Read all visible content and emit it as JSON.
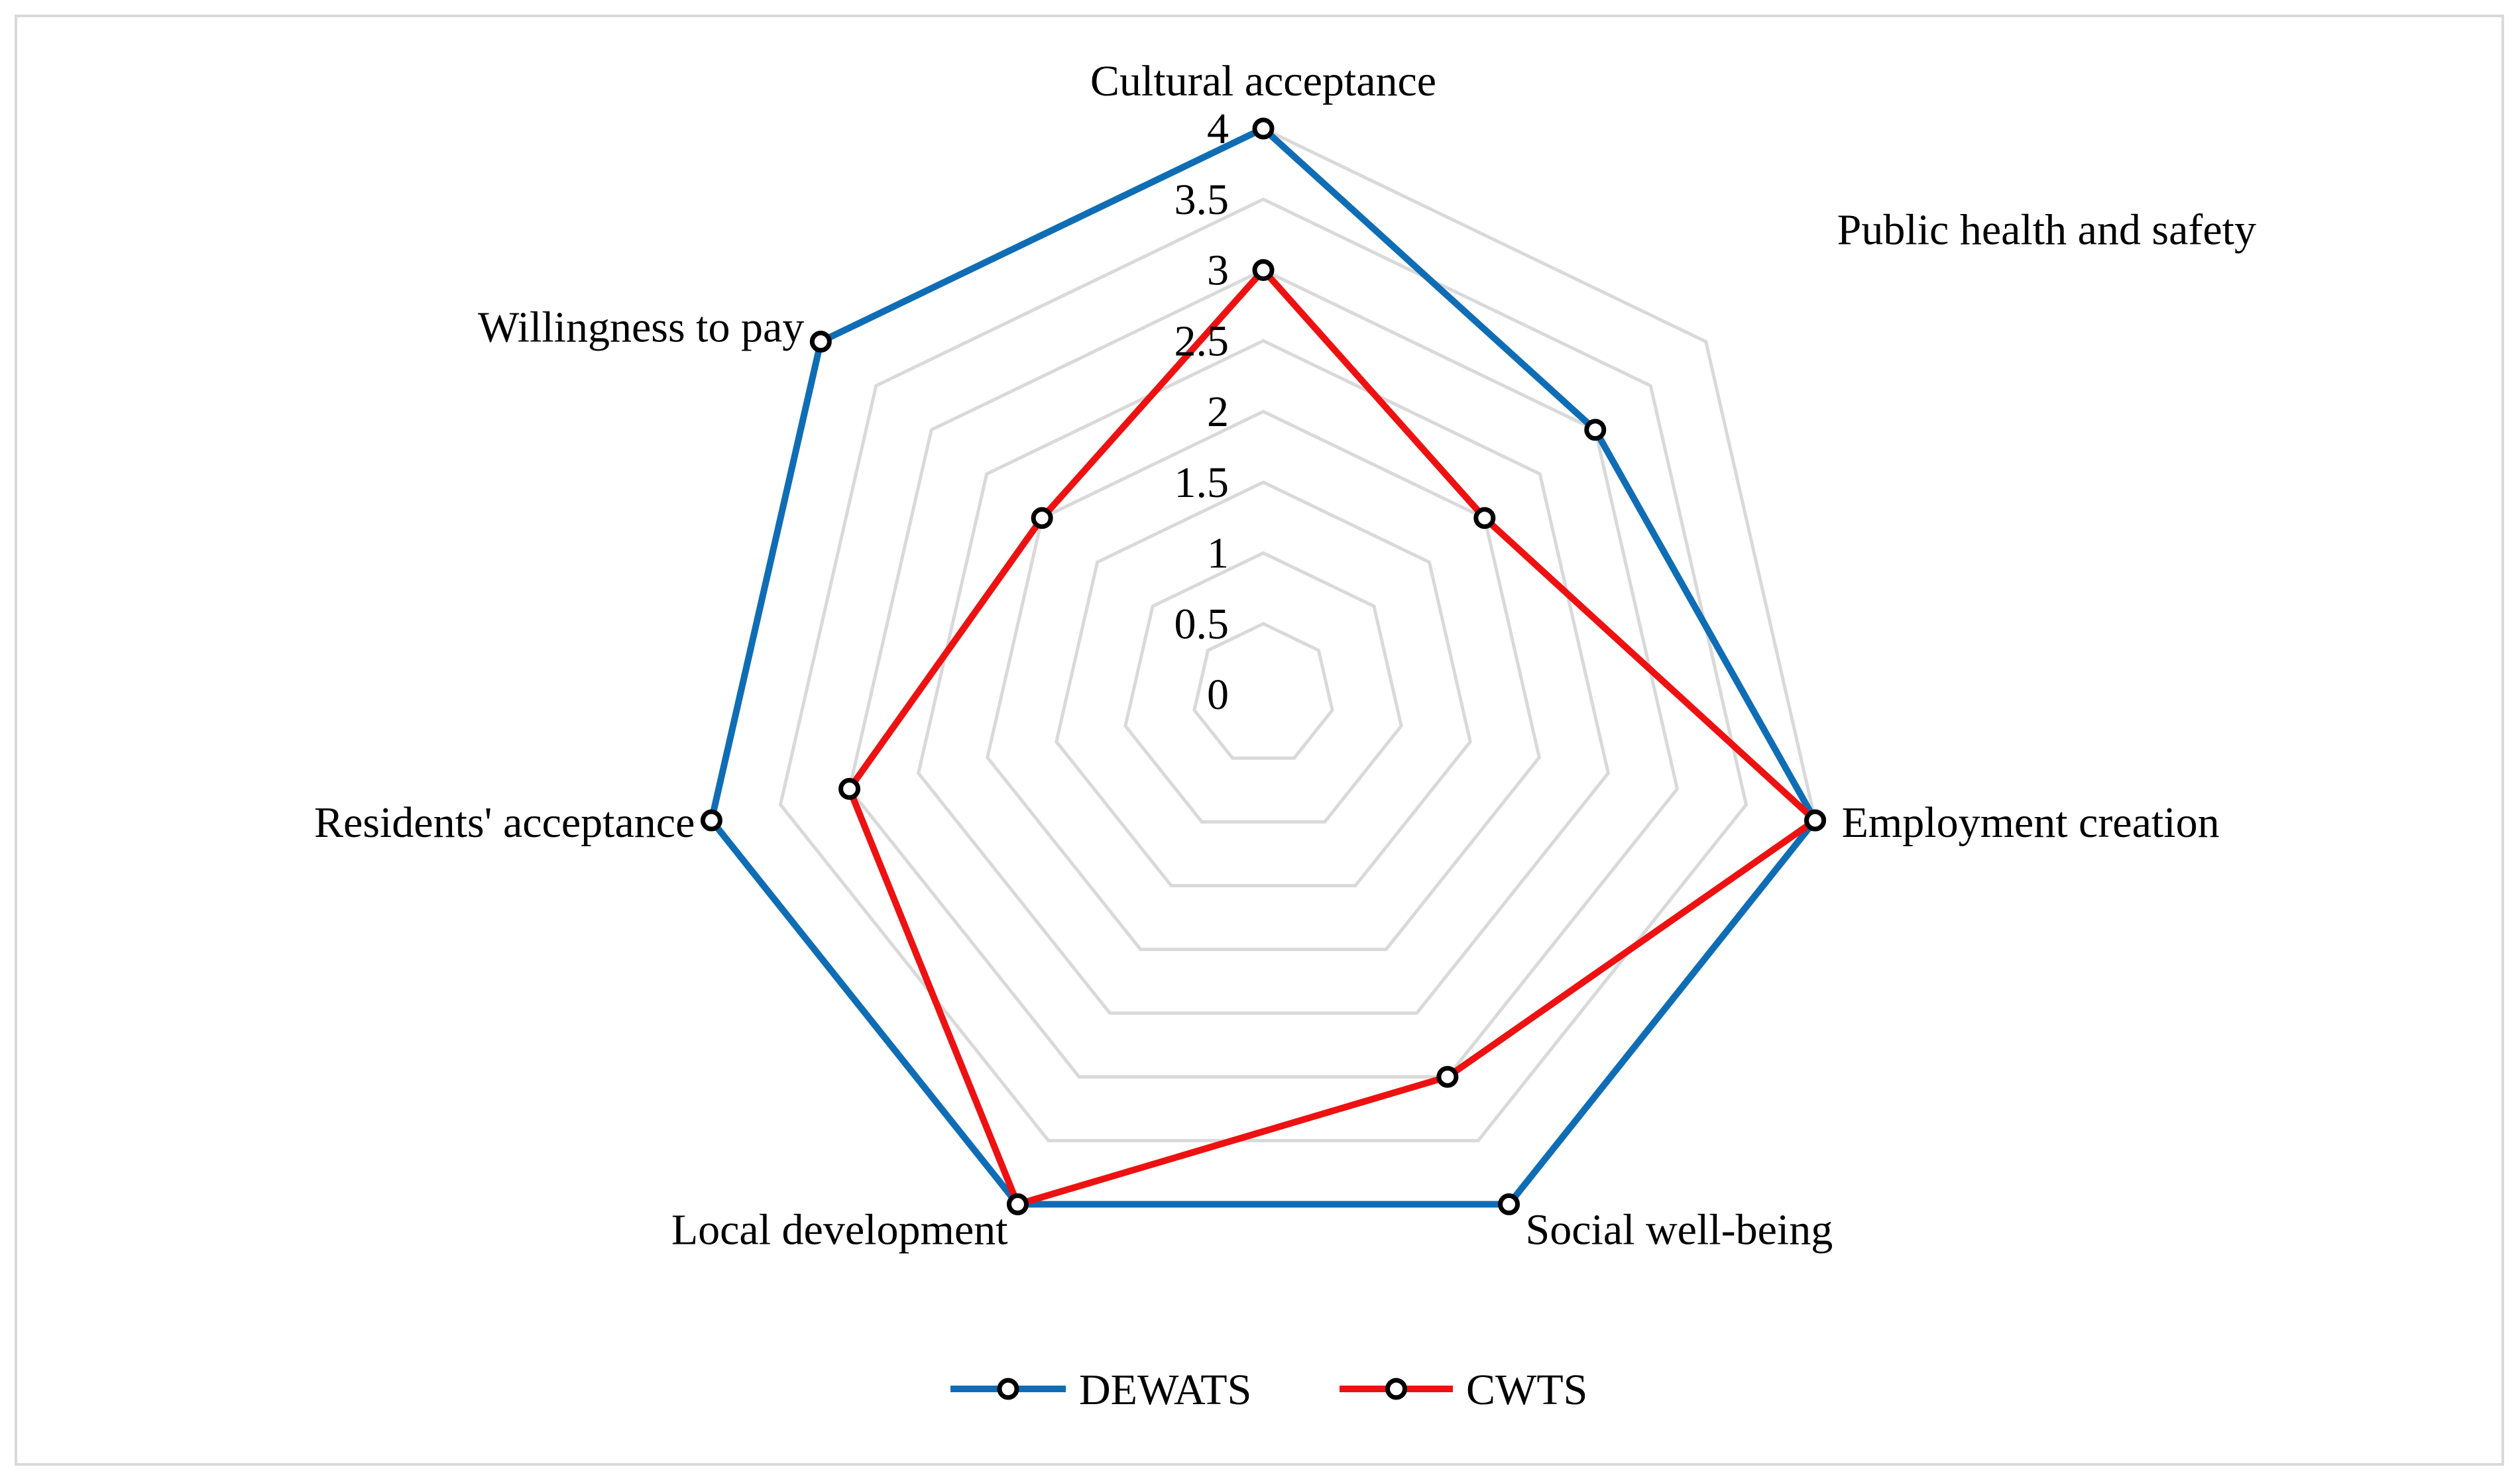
{
  "chart_data": {
    "type": "radar",
    "title": "",
    "axes": [
      "Cultural acceptance",
      "Public health and safety",
      "Employment creation",
      "Social well-being",
      "Local development",
      "Residents' acceptance",
      "Willingness to pay"
    ],
    "r_ticks": [
      "0",
      "0.5",
      "1",
      "1.5",
      "2",
      "2.5",
      "3",
      "3.5",
      "4"
    ],
    "r_range": [
      0,
      4
    ],
    "grid": true,
    "legend_position": "bottom",
    "series": [
      {
        "name": "DEWATS",
        "color": "#0F6DB5",
        "values": [
          4,
          3,
          4,
          4,
          4,
          4,
          4
        ]
      },
      {
        "name": "CWTS",
        "color": "#EE1111",
        "values": [
          3,
          2,
          4,
          3,
          4,
          3,
          2
        ]
      }
    ],
    "grid_color": "#D9D9D9",
    "marker_color": "#000000"
  }
}
